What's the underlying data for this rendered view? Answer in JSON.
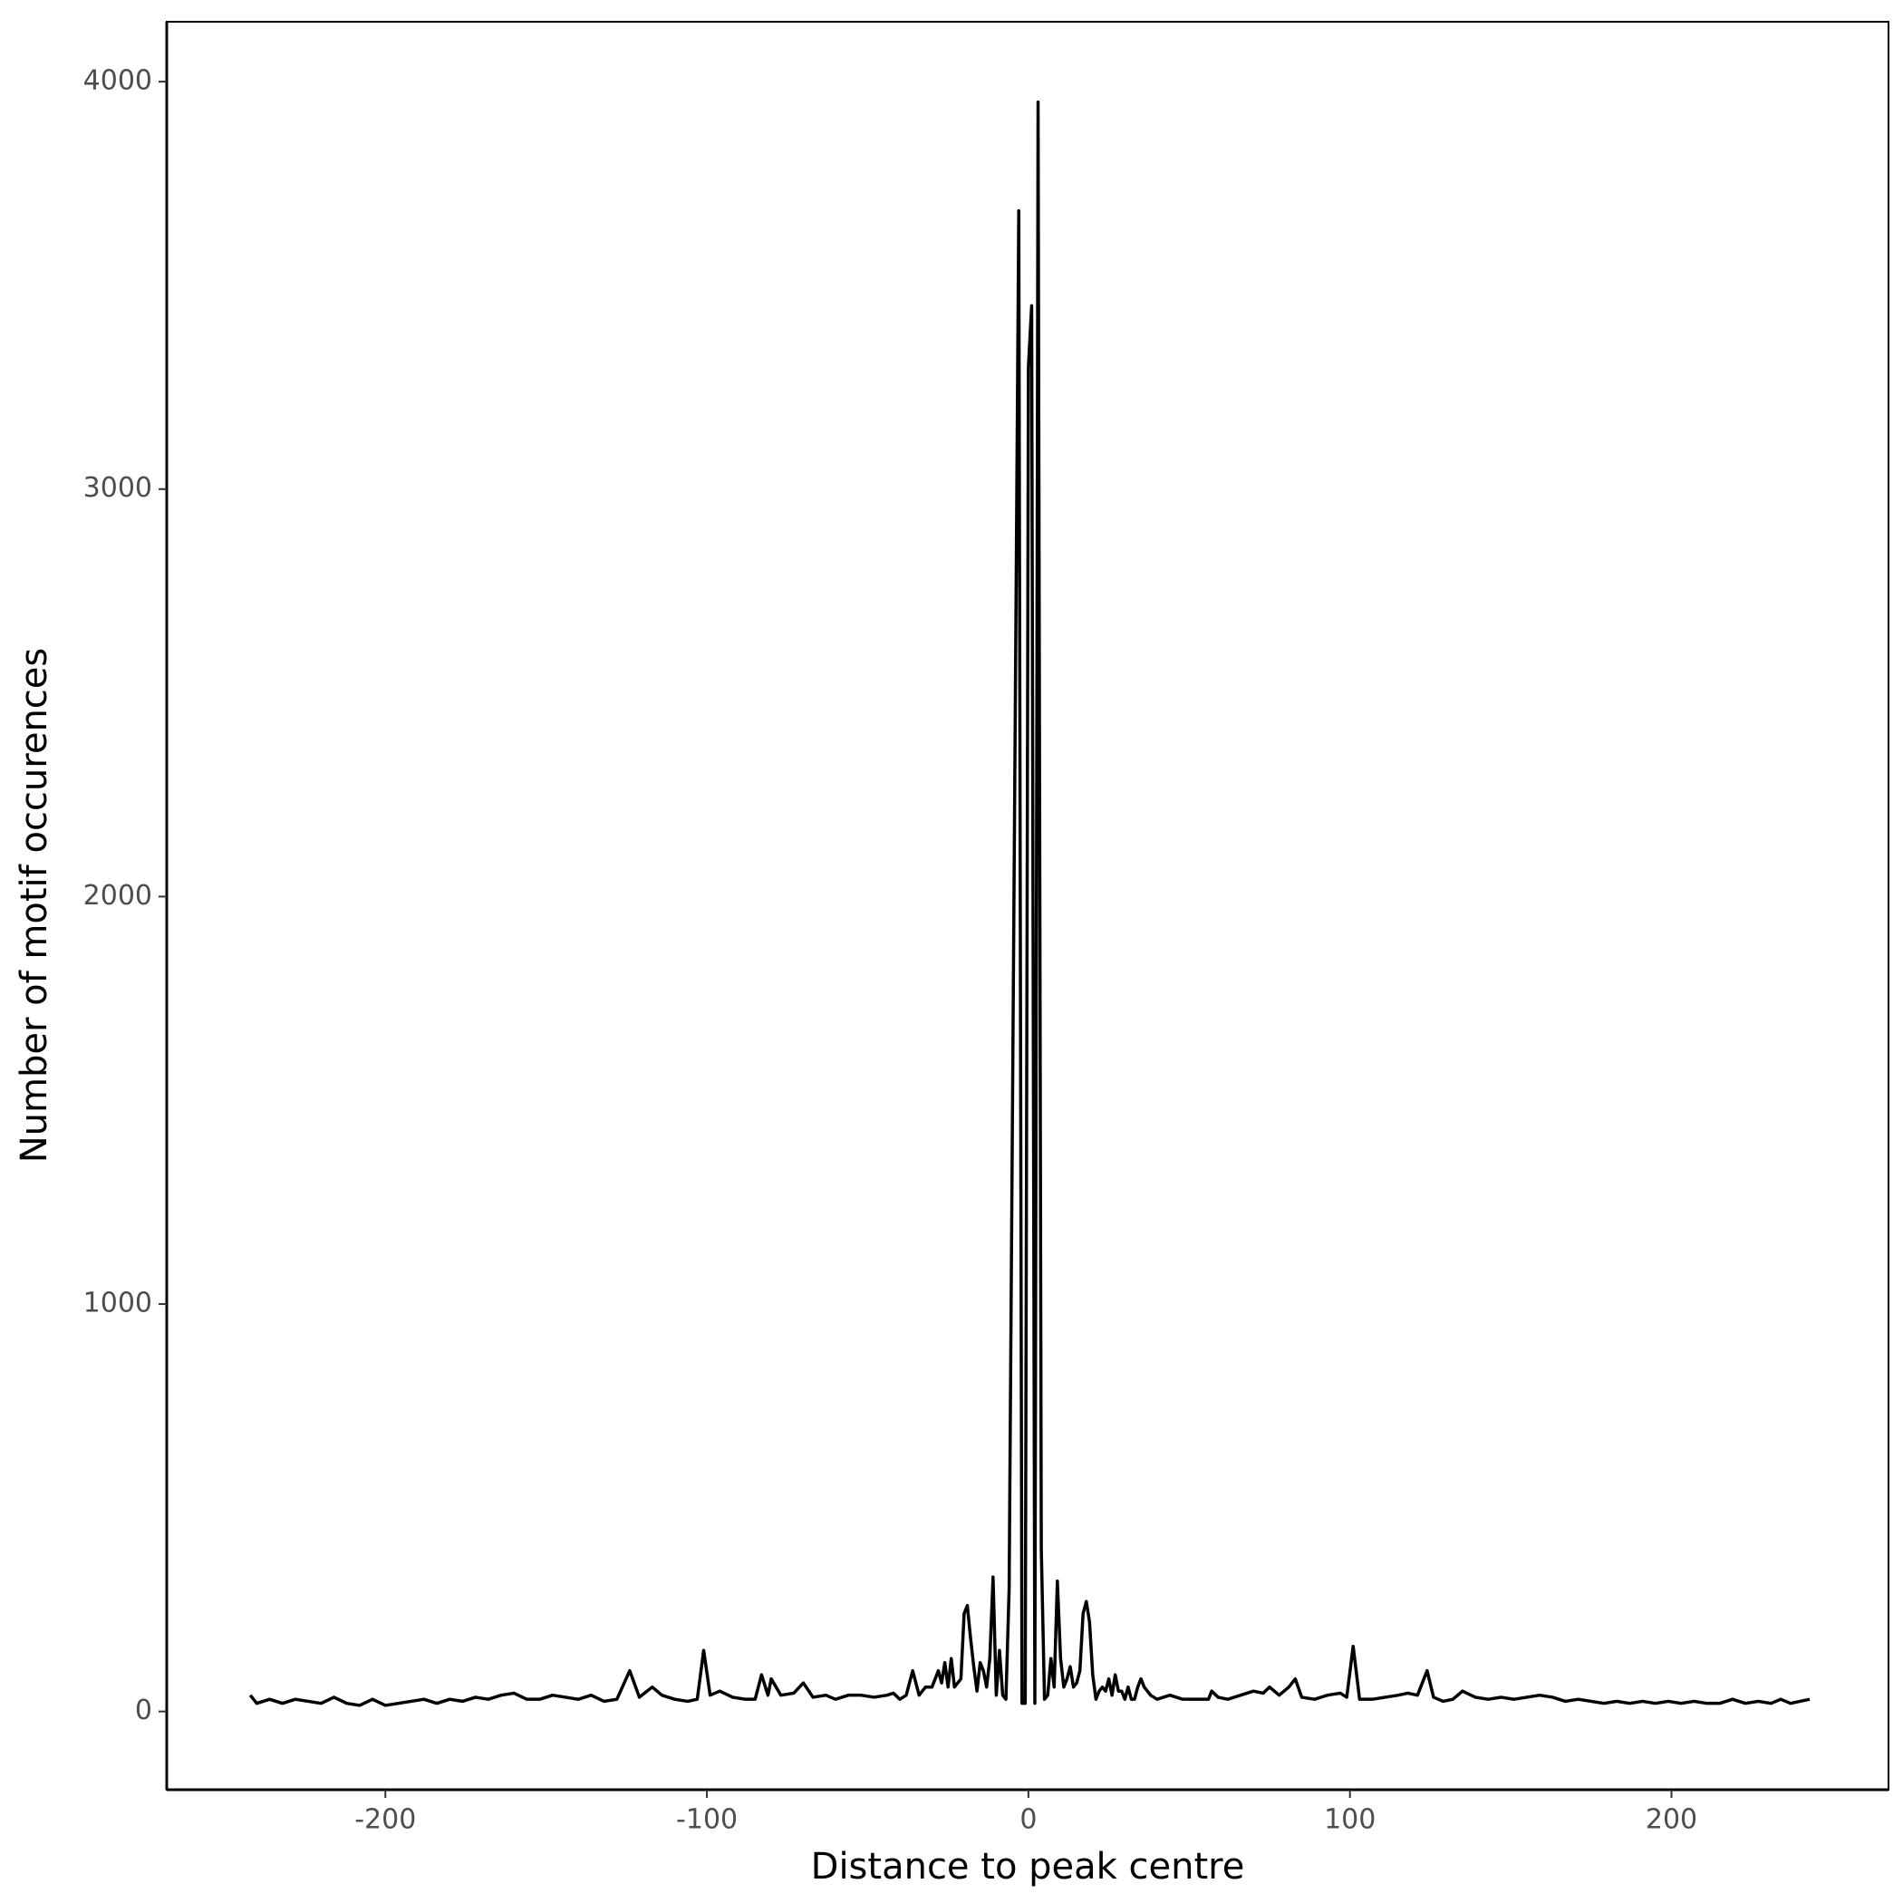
{
  "chart_data": {
    "type": "line",
    "xlabel": "Distance to peak centre",
    "ylabel": "Number of motif occurences",
    "color": "#000000",
    "xlim": [
      -268,
      267.5
    ],
    "ylim": [
      -192,
      4147
    ],
    "xticks": [
      -200,
      -100,
      0,
      100,
      200
    ],
    "yticks": [
      0,
      1000,
      2000,
      3000,
      4000
    ],
    "grid": false,
    "x": [
      -242,
      -240,
      -236,
      -232,
      -228,
      -224,
      -220,
      -216,
      -212,
      -208,
      -204,
      -200,
      -196,
      -192,
      -188,
      -184,
      -180,
      -176,
      -172,
      -168,
      -164,
      -160,
      -156,
      -152,
      -148,
      -144,
      -140,
      -136,
      -132,
      -128,
      -124,
      -121,
      -117,
      -114,
      -110,
      -106,
      -103,
      -101,
      -99,
      -96,
      -92,
      -88,
      -85,
      -83,
      -81,
      -80,
      -77,
      -73,
      -70,
      -67,
      -63,
      -60,
      -56,
      -52,
      -48,
      -44,
      -42,
      -40,
      -38,
      -36,
      -34,
      -32,
      -30,
      -28,
      -27,
      -26,
      -25,
      -24,
      -23,
      -22,
      -21,
      -20,
      -19,
      -18,
      -17,
      -16,
      -15,
      -14,
      -13,
      -12,
      -11,
      -10,
      -9,
      -8,
      -7,
      -6,
      -3,
      -2,
      -1,
      0,
      1,
      2,
      3,
      4,
      5,
      6,
      7,
      8,
      9,
      10,
      11,
      12,
      13,
      14,
      15,
      16,
      17,
      18,
      19,
      20,
      21,
      22,
      23,
      24,
      25,
      26,
      27,
      28,
      29,
      30,
      31,
      32,
      33,
      34,
      35,
      36,
      38,
      40,
      44,
      48,
      52,
      56,
      57,
      59,
      62,
      66,
      70,
      73,
      75,
      78,
      81,
      83,
      85,
      89,
      93,
      97,
      99,
      101,
      103,
      107,
      111,
      115,
      118,
      121,
      124,
      126,
      129,
      132,
      135,
      139,
      143,
      147,
      151,
      155,
      159,
      163,
      167,
      171,
      175,
      179,
      183,
      187,
      191,
      195,
      199,
      203,
      207,
      211,
      215,
      219,
      223,
      227,
      231,
      234,
      237,
      240,
      243
    ],
    "values": [
      40,
      20,
      30,
      20,
      30,
      25,
      20,
      35,
      20,
      15,
      30,
      15,
      20,
      25,
      30,
      20,
      30,
      25,
      35,
      30,
      40,
      45,
      30,
      30,
      40,
      35,
      30,
      40,
      25,
      30,
      100,
      35,
      60,
      40,
      30,
      25,
      30,
      150,
      40,
      50,
      35,
      30,
      30,
      90,
      40,
      80,
      40,
      45,
      70,
      35,
      40,
      30,
      40,
      40,
      35,
      40,
      45,
      30,
      40,
      100,
      40,
      60,
      60,
      100,
      70,
      120,
      60,
      130,
      60,
      70,
      80,
      240,
      260,
      180,
      110,
      50,
      120,
      100,
      60,
      130,
      330,
      40,
      150,
      40,
      30,
      300,
      3683,
      20,
      20,
      3300,
      3450,
      20,
      3950,
      400,
      30,
      40,
      130,
      60,
      320,
      130,
      60,
      80,
      110,
      60,
      70,
      100,
      240,
      270,
      220,
      90,
      30,
      50,
      60,
      50,
      80,
      40,
      90,
      50,
      50,
      30,
      60,
      30,
      30,
      60,
      80,
      60,
      40,
      30,
      40,
      30,
      30,
      30,
      50,
      35,
      30,
      40,
      50,
      45,
      60,
      40,
      60,
      80,
      35,
      30,
      40,
      45,
      35,
      160,
      30,
      30,
      35,
      40,
      45,
      40,
      100,
      35,
      25,
      30,
      50,
      35,
      30,
      35,
      30,
      35,
      40,
      35,
      25,
      30,
      25,
      20,
      25,
      20,
      25,
      20,
      25,
      20,
      25,
      20,
      20,
      30,
      20,
      25,
      20,
      30,
      20,
      25,
      30
    ]
  }
}
